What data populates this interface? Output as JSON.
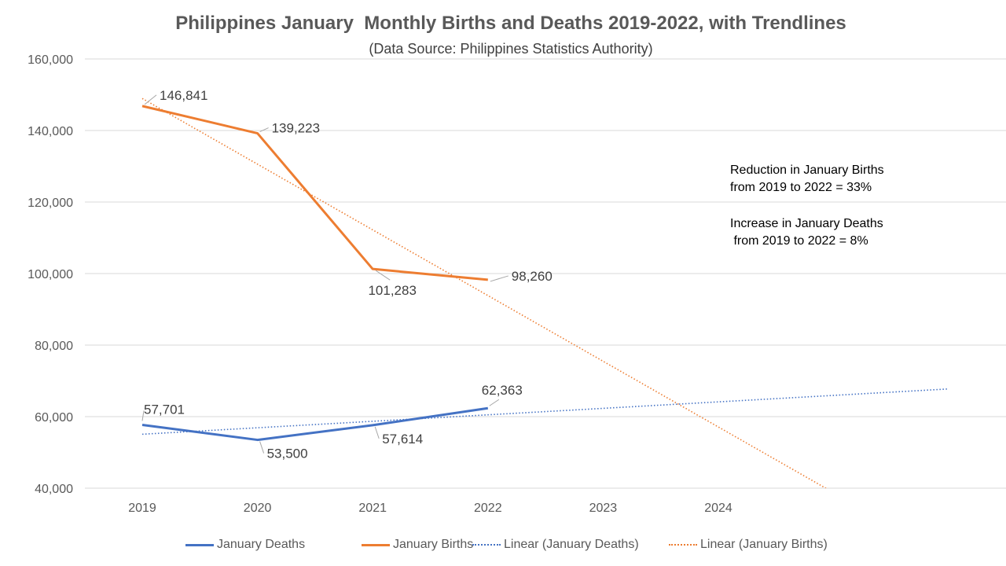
{
  "chart_data": {
    "type": "line",
    "title": "Philippines January  Monthly Births and Deaths 2019-2022, with Trendlines",
    "subtitle": "(Data Source: Philippines Statistics Authority)",
    "x_categories": [
      "2019",
      "2020",
      "2021",
      "2022",
      "2023",
      "2024"
    ],
    "ylim": [
      40000,
      160000
    ],
    "y_ticks": [
      "40,000",
      "60,000",
      "80,000",
      "100,000",
      "120,000",
      "140,000",
      "160,000"
    ],
    "y_tick_values": [
      40000,
      60000,
      80000,
      100000,
      120000,
      140000,
      160000
    ],
    "grid": true,
    "legend_position": "bottom",
    "series": [
      {
        "name": "January Deaths",
        "color": "#4472C4",
        "style": "solid",
        "values": [
          57701,
          53500,
          57614,
          62363
        ],
        "labels": [
          "57,701",
          "53,500",
          "57,614",
          "62,363"
        ]
      },
      {
        "name": "January Births",
        "color": "#ED7D31",
        "style": "solid",
        "values": [
          146841,
          139223,
          101283,
          98260
        ],
        "labels": [
          "146,841",
          "139,223",
          "101,283",
          "98,260"
        ]
      },
      {
        "name": "Linear (January Deaths)",
        "color": "#4472C4",
        "style": "dotted",
        "trend_of": "January Deaths"
      },
      {
        "name": "Linear (January Births)",
        "color": "#ED7D31",
        "style": "dotted",
        "trend_of": "January Births"
      }
    ],
    "annotations": [
      "Reduction in January Births\nfrom 2019 to 2022 = 33%",
      "Increase in January Deaths\n from 2019 to 2022 = 8%"
    ]
  }
}
